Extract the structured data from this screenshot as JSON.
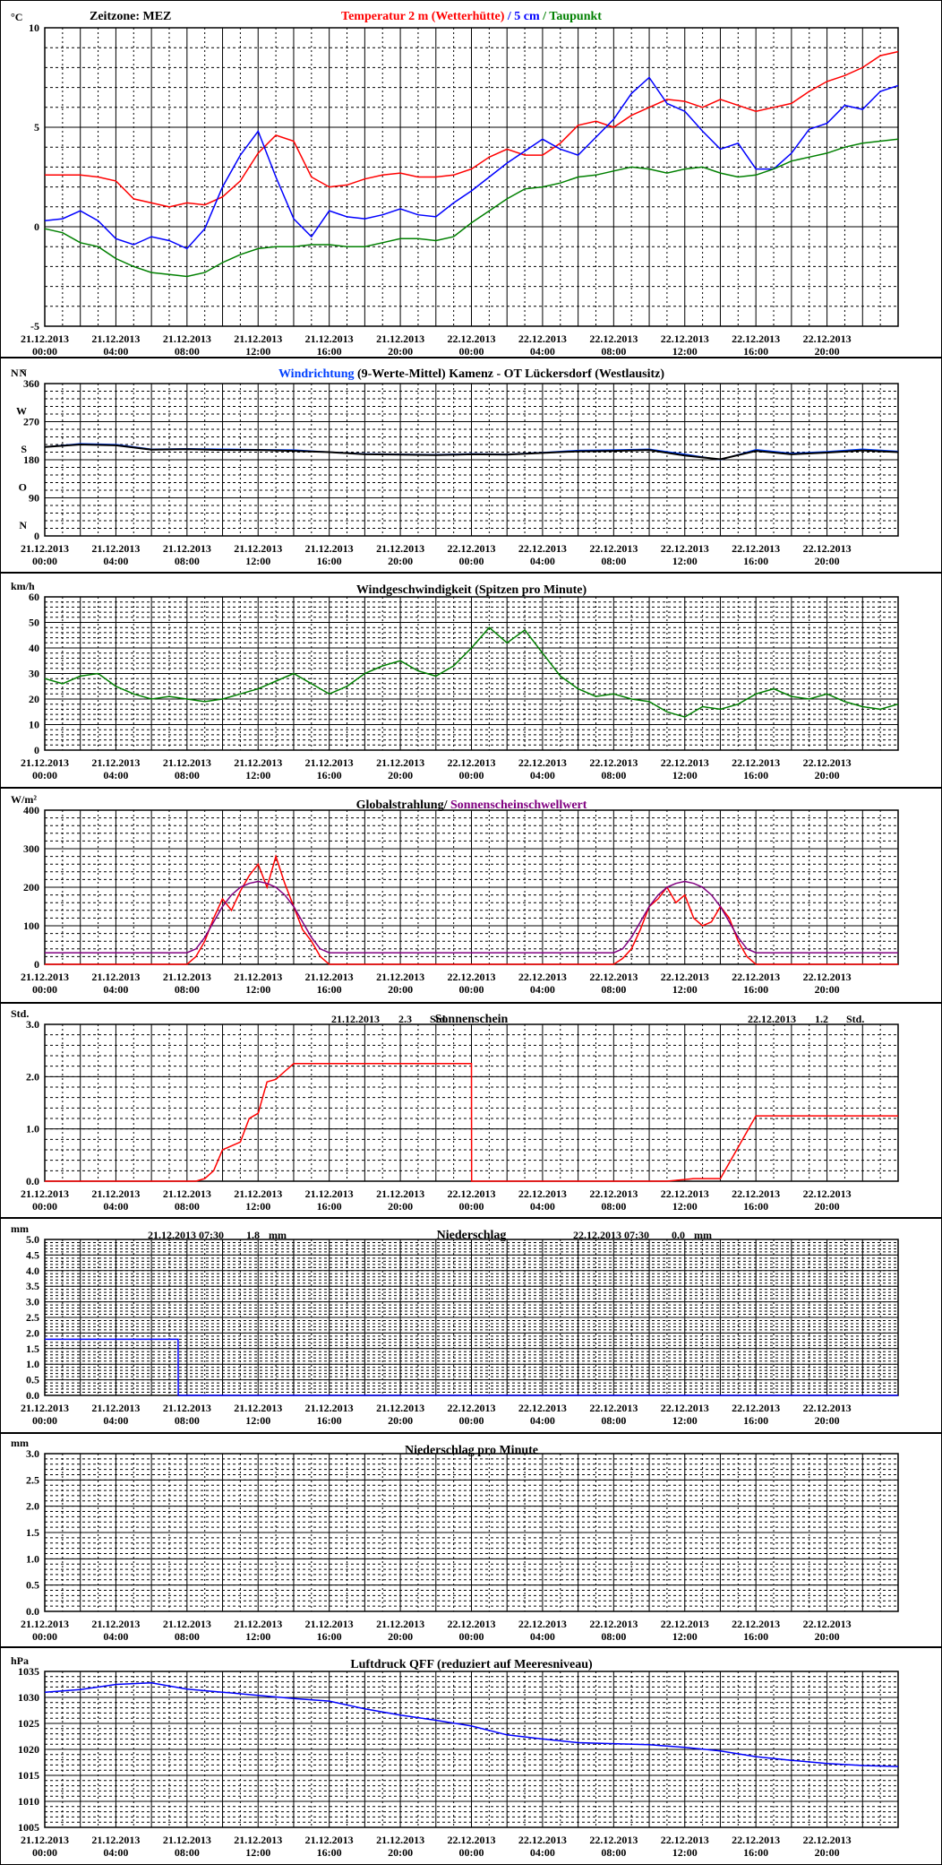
{
  "meta": {
    "timezone_label": "Zeitzone: MEZ",
    "x_tick_dates": [
      "21.12.2013",
      "21.12.2013",
      "21.12.2013",
      "21.12.2013",
      "21.12.2013",
      "21.12.2013",
      "22.12.2013",
      "22.12.2013",
      "22.12.2013",
      "22.12.2013",
      "22.12.2013",
      "22.12.2013"
    ],
    "x_tick_times": [
      "00:00",
      "04:00",
      "08:00",
      "12:00",
      "16:00",
      "20:00",
      "00:00",
      "04:00",
      "08:00",
      "12:00",
      "16:00",
      "20:00"
    ],
    "x_range_hours": [
      0,
      48
    ]
  },
  "chart_data": [
    {
      "id": "temperature",
      "type": "line",
      "unit_label": "°C",
      "title_parts": [
        {
          "text": "Temperatur 2 m (Wetterhütte)",
          "color": "#ff0000"
        },
        {
          "text": "  /  ",
          "color": "#0000ff"
        },
        {
          "text": "5 cm",
          "color": "#0000ff"
        },
        {
          "text": " / ",
          "color": "#008000"
        },
        {
          "text": "Taupunkt",
          "color": "#008000"
        }
      ],
      "ylim": [
        -5,
        10
      ],
      "yticks": [
        -5,
        0,
        5,
        10
      ],
      "ytick_labels": [
        "-5",
        "0",
        "5",
        "10"
      ],
      "grid": true,
      "x_hours": [
        0,
        1,
        2,
        3,
        4,
        5,
        6,
        7,
        8,
        9,
        10,
        11,
        12,
        13,
        14,
        15,
        16,
        17,
        18,
        19,
        20,
        21,
        22,
        23,
        24,
        25,
        26,
        27,
        28,
        29,
        30,
        31,
        32,
        33,
        34,
        35,
        36,
        37,
        38,
        39,
        40,
        41,
        42,
        43,
        44,
        45,
        46,
        47,
        48
      ],
      "series": [
        {
          "color": "#ff0000",
          "values": [
            2.6,
            2.6,
            2.6,
            2.5,
            2.3,
            1.4,
            1.2,
            1.0,
            1.2,
            1.1,
            1.5,
            2.3,
            3.7,
            4.6,
            4.3,
            2.5,
            2.0,
            2.1,
            2.4,
            2.6,
            2.7,
            2.5,
            2.5,
            2.6,
            2.9,
            3.5,
            3.9,
            3.6,
            3.6,
            4.2,
            5.1,
            5.3,
            5.0,
            5.6,
            6.0,
            6.4,
            6.3,
            6.0,
            6.4,
            6.1,
            5.8,
            6.0,
            6.2,
            6.8,
            7.3,
            7.6,
            8.0,
            8.6,
            8.8
          ]
        },
        {
          "color": "#0000ff",
          "values": [
            0.3,
            0.4,
            0.8,
            0.3,
            -0.6,
            -0.9,
            -0.5,
            -0.7,
            -1.1,
            -0.1,
            2.0,
            3.6,
            4.8,
            2.5,
            0.4,
            -0.5,
            0.8,
            0.5,
            0.4,
            0.6,
            0.9,
            0.6,
            0.5,
            1.2,
            1.8,
            2.5,
            3.2,
            3.8,
            4.4,
            3.9,
            3.6,
            4.5,
            5.4,
            6.7,
            7.5,
            6.2,
            5.8,
            4.8,
            3.9,
            4.2,
            2.9,
            2.9,
            3.7,
            4.9,
            5.2,
            6.1,
            5.9,
            6.8,
            7.1
          ]
        },
        {
          "color": "#008000",
          "values": [
            -0.1,
            -0.3,
            -0.8,
            -1.0,
            -1.6,
            -2.0,
            -2.3,
            -2.4,
            -2.5,
            -2.3,
            -1.8,
            -1.4,
            -1.1,
            -1.0,
            -1.0,
            -0.9,
            -0.9,
            -1.0,
            -1.0,
            -0.8,
            -0.6,
            -0.6,
            -0.7,
            -0.5,
            0.2,
            0.8,
            1.4,
            1.9,
            2.0,
            2.2,
            2.5,
            2.6,
            2.8,
            3.0,
            2.9,
            2.7,
            2.9,
            3.0,
            2.7,
            2.5,
            2.6,
            2.9,
            3.3,
            3.5,
            3.7,
            4.0,
            4.2,
            4.3,
            4.4
          ]
        }
      ]
    },
    {
      "id": "wind_direction",
      "type": "line",
      "unit_label": "N °",
      "title_parts": [
        {
          "text": "Windrichtung",
          "color": "#0040ff"
        },
        {
          "text": " (9-Werte-Mittel)",
          "color": "#000000"
        },
        {
          "text": "        Kamenz - OT Lückersdorf (Westlausitz)",
          "color": "#000000"
        }
      ],
      "ylim": [
        0,
        360
      ],
      "yticks": [
        0,
        90,
        180,
        270,
        360
      ],
      "ytick_labels": [
        "0",
        "90",
        "180",
        "270",
        "360"
      ],
      "compass_labels": [
        "N",
        "O",
        "S",
        "W",
        "N"
      ],
      "grid": true,
      "x_hours": [
        0,
        2,
        4,
        6,
        8,
        10,
        12,
        14,
        16,
        18,
        20,
        22,
        24,
        26,
        28,
        30,
        32,
        34,
        36,
        38,
        40,
        42,
        44,
        46,
        48
      ],
      "series": [
        {
          "color": "#0040ff",
          "values": [
            210,
            218,
            216,
            205,
            206,
            205,
            204,
            203,
            198,
            194,
            193,
            192,
            194,
            193,
            197,
            202,
            203,
            205,
            193,
            180,
            204,
            195,
            199,
            205,
            200
          ]
        },
        {
          "color": "#000000",
          "values": [
            210,
            216,
            214,
            204,
            205,
            203,
            203,
            201,
            198,
            193,
            192,
            191,
            193,
            192,
            196,
            200,
            201,
            203,
            190,
            181,
            201,
            193,
            197,
            202,
            198
          ]
        }
      ]
    },
    {
      "id": "wind_speed",
      "type": "line",
      "unit_label": "km/h",
      "title_parts": [
        {
          "text": "Windgeschwindigkeit (Spitzen pro Minute)",
          "color": "#000000"
        }
      ],
      "ylim": [
        0,
        60
      ],
      "yticks": [
        0,
        10,
        20,
        30,
        40,
        50,
        60
      ],
      "ytick_labels": [
        "0",
        "10",
        "20",
        "30",
        "40",
        "50",
        "60"
      ],
      "grid": true,
      "x_hours": [
        0,
        1,
        2,
        3,
        4,
        5,
        6,
        7,
        8,
        9,
        10,
        11,
        12,
        13,
        14,
        15,
        16,
        17,
        18,
        19,
        20,
        21,
        22,
        23,
        24,
        25,
        26,
        27,
        28,
        29,
        30,
        31,
        32,
        33,
        34,
        35,
        36,
        37,
        38,
        39,
        40,
        41,
        42,
        43,
        44,
        45,
        46,
        47,
        48
      ],
      "series": [
        {
          "color": "#008000",
          "values": [
            28,
            26,
            29,
            30,
            25,
            22,
            20,
            21,
            20,
            19,
            20,
            22,
            24,
            27,
            30,
            26,
            22,
            25,
            30,
            33,
            35,
            31,
            29,
            33,
            40,
            48,
            42,
            47,
            38,
            29,
            24,
            21,
            22,
            20,
            19,
            15,
            13,
            17,
            16,
            18,
            22,
            24,
            21,
            20,
            22,
            19,
            17,
            16,
            18
          ]
        }
      ]
    },
    {
      "id": "radiation",
      "type": "line",
      "unit_label": "W/m²",
      "title_parts": [
        {
          "text": "Globalstrahlung/ ",
          "color": "#000000"
        },
        {
          "text": "Sonnenscheinschwellwert",
          "color": "#800080"
        }
      ],
      "ylim": [
        0,
        400
      ],
      "yticks": [
        0,
        100,
        200,
        300,
        400
      ],
      "ytick_labels": [
        "0",
        "100",
        "200",
        "300",
        "400"
      ],
      "grid": true,
      "x_hours": [
        0,
        8,
        8.5,
        9,
        9.5,
        10,
        10.5,
        11,
        11.5,
        12,
        12.5,
        13,
        13.5,
        14,
        14.5,
        15,
        15.5,
        16,
        32,
        32.5,
        33,
        33.5,
        34,
        34.5,
        35,
        35.5,
        36,
        36.5,
        37,
        37.5,
        38,
        38.5,
        39,
        39.5,
        40,
        48
      ],
      "series": [
        {
          "color": "#ff0000",
          "values": [
            0,
            0,
            20,
            60,
            120,
            170,
            140,
            190,
            230,
            260,
            200,
            280,
            210,
            150,
            90,
            60,
            20,
            0,
            0,
            15,
            40,
            90,
            150,
            170,
            200,
            160,
            180,
            120,
            100,
            110,
            150,
            120,
            60,
            20,
            0,
            0
          ]
        },
        {
          "color": "#800080",
          "values": [
            30,
            30,
            40,
            70,
            110,
            150,
            180,
            200,
            210,
            215,
            210,
            200,
            180,
            150,
            110,
            70,
            40,
            30,
            30,
            40,
            70,
            110,
            150,
            180,
            200,
            210,
            215,
            210,
            200,
            180,
            150,
            110,
            70,
            40,
            30,
            30
          ]
        }
      ]
    },
    {
      "id": "sunshine",
      "type": "line",
      "unit_label": "Std.",
      "title_parts": [
        {
          "text": "Sonnenschein",
          "color": "#000000"
        }
      ],
      "annotations": [
        {
          "date": "21.12.2013",
          "value": "2.3",
          "unit": "Std."
        },
        {
          "date": "22.12.2013",
          "value": "1.2",
          "unit": "Std."
        }
      ],
      "ylim": [
        0,
        3
      ],
      "yticks": [
        0,
        1,
        2,
        3
      ],
      "ytick_labels": [
        "0.0",
        "1.0",
        "2.0",
        "3.0"
      ],
      "grid": true,
      "x_hours": [
        0,
        8.5,
        9,
        9.5,
        10,
        11,
        11.5,
        12,
        12.5,
        13,
        13.5,
        14,
        14.5,
        15,
        16,
        24,
        24.01,
        35,
        36.5,
        38,
        40,
        48
      ],
      "series": [
        {
          "color": "#ff0000",
          "values": [
            0,
            0,
            0.05,
            0.2,
            0.6,
            0.75,
            1.2,
            1.3,
            1.9,
            1.95,
            2.1,
            2.25,
            2.25,
            2.25,
            2.25,
            2.25,
            0,
            0,
            0.05,
            0.05,
            1.25,
            1.25
          ]
        }
      ]
    },
    {
      "id": "precipitation",
      "type": "line",
      "unit_label": "mm",
      "title_parts": [
        {
          "text": "Niederschlag",
          "color": "#000000"
        }
      ],
      "annotations": [
        {
          "date": "21.12.2013 07:30",
          "value": "1.8",
          "unit": "mm"
        },
        {
          "date": "22.12.2013 07:30",
          "value": "0.0",
          "unit": "mm"
        }
      ],
      "ylim": [
        0,
        5
      ],
      "yticks": [
        0,
        0.5,
        1,
        1.5,
        2,
        2.5,
        3,
        3.5,
        4,
        4.5,
        5
      ],
      "ytick_labels": [
        "0.0",
        "0.5",
        "1.0",
        "1.5",
        "2.0",
        "2.5",
        "3.0",
        "3.5",
        "4.0",
        "4.5",
        "5.0"
      ],
      "grid": true,
      "x_hours": [
        0,
        7.5,
        7.51,
        48
      ],
      "series": [
        {
          "color": "#0000ff",
          "values": [
            1.8,
            1.8,
            0,
            0
          ]
        }
      ]
    },
    {
      "id": "precipitation_minute",
      "type": "line",
      "unit_label": "mm",
      "title_parts": [
        {
          "text": "Niederschlag pro Minute",
          "color": "#000000"
        }
      ],
      "ylim": [
        0,
        3
      ],
      "yticks": [
        0,
        0.5,
        1,
        1.5,
        2,
        2.5,
        3
      ],
      "ytick_labels": [
        "0.0",
        "0.5",
        "1.0",
        "1.5",
        "2.0",
        "2.5",
        "3.0"
      ],
      "grid": true,
      "x_hours": [],
      "series": []
    },
    {
      "id": "pressure",
      "type": "line",
      "unit_label": "hPa",
      "title_parts": [
        {
          "text": "Luftdruck QFF (reduziert auf Meeresniveau)",
          "color": "#000000"
        }
      ],
      "ylim": [
        1005,
        1035
      ],
      "yticks": [
        1005,
        1010,
        1015,
        1020,
        1025,
        1030,
        1035
      ],
      "ytick_labels": [
        "1005",
        "1010",
        "1015",
        "1020",
        "1025",
        "1030",
        "1035"
      ],
      "grid": true,
      "x_hours": [
        0,
        2,
        4,
        6,
        8,
        10,
        12,
        14,
        16,
        18,
        20,
        22,
        24,
        26,
        28,
        30,
        32,
        34,
        36,
        38,
        40,
        42,
        44,
        46,
        48
      ],
      "series": [
        {
          "color": "#0000ff",
          "values": [
            1031,
            1031.5,
            1032.5,
            1032.8,
            1031.6,
            1031,
            1030.4,
            1029.8,
            1029.3,
            1027.8,
            1026.6,
            1025.6,
            1024.5,
            1022.8,
            1022,
            1021.3,
            1021.1,
            1020.9,
            1020.4,
            1019.7,
            1018.6,
            1017.9,
            1017.3,
            1016.9,
            1016.7
          ]
        }
      ]
    }
  ]
}
